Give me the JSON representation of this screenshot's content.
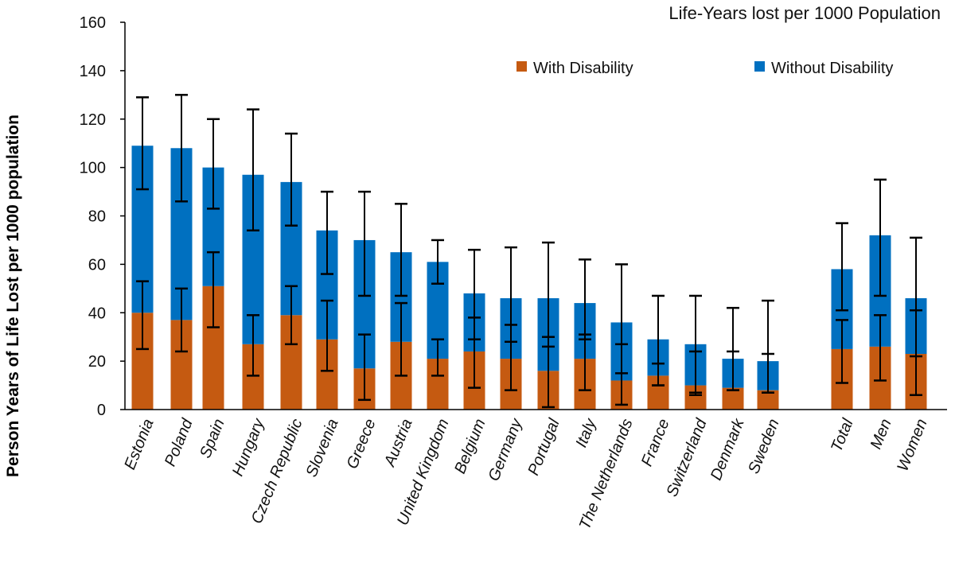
{
  "chart_data": {
    "type": "bar",
    "stacked": true,
    "title": "Life-Years lost per 1000 Population",
    "xlabel": "",
    "ylabel": "Person Years of Life Lost per 1000 population",
    "ylim": [
      0,
      160
    ],
    "yticks": [
      0,
      20,
      40,
      60,
      80,
      100,
      120,
      140,
      160
    ],
    "grid": false,
    "legend_position": "top-right",
    "categories": [
      "Estonia",
      "Poland",
      "Spain",
      "Hungary",
      "Czech Republic",
      "Slovenia",
      "Greece",
      "Austria",
      "United Kingdom",
      "Belgium",
      "Germany",
      "Portugal",
      "Italy",
      "The Netherlands",
      "France",
      "Switzerland",
      "Denmark",
      "Sweden",
      "Total",
      "Men",
      "Women"
    ],
    "series": [
      {
        "name": "With Disability",
        "color": "#C55A11",
        "values": [
          40,
          37,
          51,
          27,
          39,
          29,
          17,
          28,
          21,
          24,
          21,
          16,
          21,
          12,
          14,
          10,
          9,
          8,
          25,
          26,
          23
        ],
        "error_low": [
          25,
          24,
          34,
          14,
          27,
          16,
          4,
          14,
          14,
          9,
          8,
          1,
          8,
          2,
          10,
          6,
          8,
          7,
          11,
          12,
          6
        ],
        "error_high": [
          53,
          50,
          65,
          39,
          51,
          45,
          31,
          44,
          29,
          38,
          35,
          30,
          31,
          27,
          19,
          24,
          24,
          23,
          37,
          39,
          41
        ]
      },
      {
        "name": "Without Disability",
        "color": "#0070C0",
        "values": [
          69,
          71,
          49,
          70,
          55,
          45,
          53,
          37,
          40,
          24,
          25,
          30,
          23,
          24,
          15,
          17,
          12,
          12,
          33,
          46,
          23
        ],
        "error_low": [
          91,
          86,
          83,
          74,
          76,
          56,
          47,
          47,
          52,
          29,
          28,
          26,
          29,
          15,
          10,
          7,
          8,
          7,
          41,
          47,
          22
        ],
        "error_high": [
          129,
          130,
          120,
          124,
          114,
          90,
          90,
          85,
          70,
          66,
          67,
          69,
          62,
          60,
          47,
          47,
          42,
          45,
          77,
          95,
          71
        ]
      }
    ]
  }
}
